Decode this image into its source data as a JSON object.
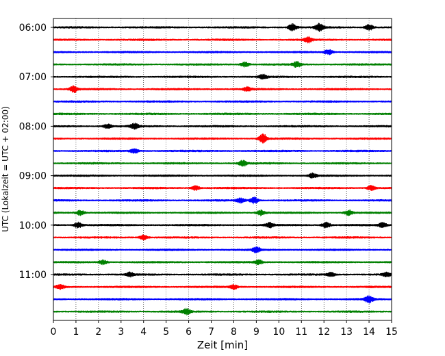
{
  "chart_data": {
    "type": "line",
    "title": "",
    "xlabel": "Zeit  [min]",
    "ylabel": "UTC (Lokalzeit = UTC + 02:00)",
    "xlim": [
      0,
      15
    ],
    "xticks": [
      0,
      1,
      2,
      3,
      4,
      5,
      6,
      7,
      8,
      9,
      10,
      11,
      12,
      13,
      14,
      15
    ],
    "ytick_labels": [
      "06:00",
      "07:00",
      "08:00",
      "09:00",
      "10:00",
      "11:00"
    ],
    "grid": "vertical-dotted",
    "trace_interval_min": 15,
    "trace_start": "06:00",
    "trace_end": "11:45",
    "trace_colors": [
      "#000000",
      "#ff0000",
      "#0000ff",
      "#008000"
    ],
    "series": [
      {
        "start": "06:00",
        "color": "#000000",
        "bursts": [
          [
            10.6,
            1.6
          ],
          [
            11.8,
            1.8
          ],
          [
            14.0,
            1.4
          ]
        ]
      },
      {
        "start": "06:15",
        "color": "#ff0000",
        "bursts": [
          [
            11.3,
            1.3
          ]
        ]
      },
      {
        "start": "06:30",
        "color": "#0000ff",
        "bursts": [
          [
            12.2,
            1.2
          ]
        ]
      },
      {
        "start": "06:45",
        "color": "#008000",
        "bursts": [
          [
            8.5,
            1.1
          ],
          [
            10.8,
            1.3
          ]
        ]
      },
      {
        "start": "07:00",
        "color": "#000000",
        "bursts": [
          [
            9.3,
            1.0
          ]
        ]
      },
      {
        "start": "07:15",
        "color": "#ff0000",
        "bursts": [
          [
            0.9,
            1.5
          ],
          [
            8.6,
            1.0
          ]
        ]
      },
      {
        "start": "07:30",
        "color": "#0000ff",
        "bursts": []
      },
      {
        "start": "07:45",
        "color": "#008000",
        "bursts": []
      },
      {
        "start": "08:00",
        "color": "#000000",
        "bursts": [
          [
            2.4,
            1.0
          ],
          [
            3.6,
            1.2
          ]
        ]
      },
      {
        "start": "08:15",
        "color": "#ff0000",
        "bursts": [
          [
            9.3,
            2.2
          ]
        ]
      },
      {
        "start": "08:30",
        "color": "#0000ff",
        "bursts": [
          [
            3.6,
            1.0
          ]
        ]
      },
      {
        "start": "08:45",
        "color": "#008000",
        "bursts": [
          [
            8.4,
            1.3
          ]
        ]
      },
      {
        "start": "09:00",
        "color": "#000000",
        "bursts": [
          [
            11.5,
            1.0
          ]
        ]
      },
      {
        "start": "09:15",
        "color": "#ff0000",
        "bursts": [
          [
            6.3,
            1.1
          ],
          [
            14.1,
            1.1
          ]
        ]
      },
      {
        "start": "09:30",
        "color": "#0000ff",
        "bursts": [
          [
            8.3,
            1.1
          ],
          [
            8.9,
            1.5
          ]
        ]
      },
      {
        "start": "09:45",
        "color": "#008000",
        "bursts": [
          [
            1.2,
            1.2
          ],
          [
            9.2,
            1.3
          ],
          [
            13.1,
            1.2
          ]
        ]
      },
      {
        "start": "10:00",
        "color": "#000000",
        "bursts": [
          [
            1.1,
            1.3
          ],
          [
            9.6,
            1.1
          ],
          [
            12.1,
            1.3
          ],
          [
            14.6,
            1.1
          ]
        ]
      },
      {
        "start": "10:15",
        "color": "#ff0000",
        "bursts": [
          [
            4.0,
            1.1
          ]
        ]
      },
      {
        "start": "10:30",
        "color": "#0000ff",
        "bursts": [
          [
            9.0,
            1.3
          ]
        ]
      },
      {
        "start": "10:45",
        "color": "#008000",
        "bursts": [
          [
            2.2,
            1.0
          ],
          [
            9.1,
            1.0
          ]
        ]
      },
      {
        "start": "11:00",
        "color": "#000000",
        "bursts": [
          [
            3.4,
            1.0
          ],
          [
            12.3,
            0.9
          ],
          [
            14.8,
            1.0
          ]
        ]
      },
      {
        "start": "11:15",
        "color": "#ff0000",
        "bursts": [
          [
            0.3,
            1.0
          ],
          [
            8.0,
            1.0
          ]
        ]
      },
      {
        "start": "11:30",
        "color": "#0000ff",
        "bursts": [
          [
            14.0,
            1.6
          ]
        ]
      },
      {
        "start": "11:45",
        "color": "#008000",
        "bursts": [
          [
            5.9,
            1.3
          ]
        ]
      }
    ]
  }
}
